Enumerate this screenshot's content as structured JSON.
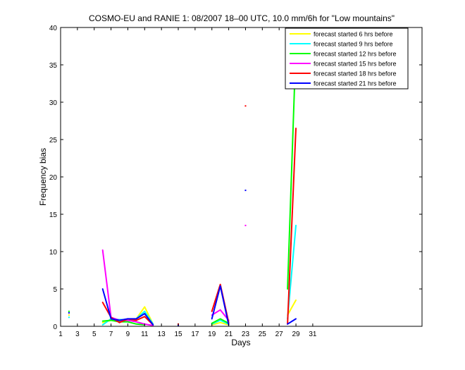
{
  "chart_data": {
    "type": "line",
    "title": "COSMO-EU and RANIE 1: 08/2007 18–00 UTC, 10.0 mm/6h for \"Low mountains\"",
    "xlabel": "Days",
    "ylabel": "Frequency bias",
    "xlim": [
      1,
      44
    ],
    "ylim": [
      0,
      40
    ],
    "xticks": [
      1,
      3,
      5,
      7,
      9,
      11,
      13,
      15,
      17,
      19,
      21,
      23,
      25,
      27,
      29,
      31
    ],
    "yticks": [
      0,
      5,
      10,
      15,
      20,
      25,
      30,
      35,
      40
    ],
    "grid": false,
    "legend_position": "top-right",
    "series": [
      {
        "name": "forecast started 6 hrs before",
        "color": "#ffff00",
        "segments": [
          [
            [
              2,
              1.5
            ]
          ],
          [
            [
              6,
              0.5
            ],
            [
              7,
              0.8
            ],
            [
              8,
              0.8
            ],
            [
              9,
              0.8
            ],
            [
              10,
              1.0
            ],
            [
              11,
              2.6
            ],
            [
              12,
              0.3
            ]
          ],
          [
            [
              19,
              0.2
            ],
            [
              20,
              0.5
            ],
            [
              21,
              0.2
            ]
          ],
          [
            [
              28,
              1.5
            ],
            [
              29,
              3.5
            ]
          ]
        ]
      },
      {
        "name": "forecast started 9 hrs before",
        "color": "#00ffff",
        "segments": [
          [
            [
              2,
              1.2
            ]
          ],
          [
            [
              6,
              0.2
            ],
            [
              7,
              1.0
            ],
            [
              8,
              0.9
            ],
            [
              9,
              0.9
            ],
            [
              10,
              1.0
            ],
            [
              11,
              2.0
            ],
            [
              12,
              0.3
            ]
          ],
          [
            [
              19,
              0.3
            ],
            [
              20,
              0.8
            ],
            [
              21,
              0.3
            ]
          ],
          [
            [
              28,
              1.0
            ],
            [
              29,
              13.5
            ]
          ]
        ]
      },
      {
        "name": "forecast started 12 hrs before",
        "color": "#00ff00",
        "segments": [
          [
            [
              2,
              2.0
            ]
          ],
          [
            [
              6,
              0.7
            ],
            [
              7,
              0.8
            ],
            [
              8,
              0.6
            ],
            [
              9,
              0.6
            ],
            [
              10,
              0.3
            ],
            [
              11,
              0.2
            ]
          ],
          [
            [
              19,
              0.4
            ],
            [
              20,
              1.0
            ],
            [
              21,
              0.4
            ]
          ],
          [
            [
              28,
              5.0
            ],
            [
              29,
              37.5
            ]
          ]
        ]
      },
      {
        "name": "forecast started 15 hrs before",
        "color": "#ff00ff",
        "segments": [
          [
            [
              6,
              10.2
            ],
            [
              7,
              1.2
            ],
            [
              8,
              0.8
            ],
            [
              9,
              0.8
            ],
            [
              10,
              0.6
            ],
            [
              11,
              0.3
            ],
            [
              12,
              0.1
            ]
          ],
          [
            [
              19,
              1.5
            ],
            [
              20,
              2.2
            ],
            [
              21,
              0.8
            ]
          ],
          [
            [
              23,
              13.5
            ]
          ]
        ]
      },
      {
        "name": "forecast started 18 hrs before",
        "color": "#ff0000",
        "segments": [
          [
            [
              6,
              3.2
            ],
            [
              7,
              1.2
            ],
            [
              8,
              0.5
            ],
            [
              9,
              1.0
            ],
            [
              10,
              0.8
            ],
            [
              11,
              1.3
            ],
            [
              12,
              0.2
            ]
          ],
          [
            [
              15,
              0.3
            ]
          ],
          [
            [
              19,
              2.0
            ],
            [
              20,
              5.6
            ],
            [
              21,
              0.5
            ]
          ],
          [
            [
              23,
              29.5
            ]
          ],
          [
            [
              28,
              0.3
            ],
            [
              29,
              26.5
            ]
          ]
        ]
      },
      {
        "name": "forecast started 21 hrs before",
        "color": "#0000ff",
        "segments": [
          [
            [
              2,
              1.8
            ]
          ],
          [
            [
              6,
              5.0
            ],
            [
              7,
              1.0
            ],
            [
              8,
              0.8
            ],
            [
              9,
              1.0
            ],
            [
              10,
              1.0
            ],
            [
              11,
              1.7
            ],
            [
              12,
              0.2
            ]
          ],
          [
            [
              15,
              0.1
            ]
          ],
          [
            [
              19,
              1.0
            ],
            [
              20,
              5.4
            ],
            [
              21,
              0.2
            ]
          ],
          [
            [
              23,
              18.2
            ]
          ],
          [
            [
              28,
              0.3
            ],
            [
              29,
              1.0
            ]
          ]
        ]
      }
    ]
  }
}
